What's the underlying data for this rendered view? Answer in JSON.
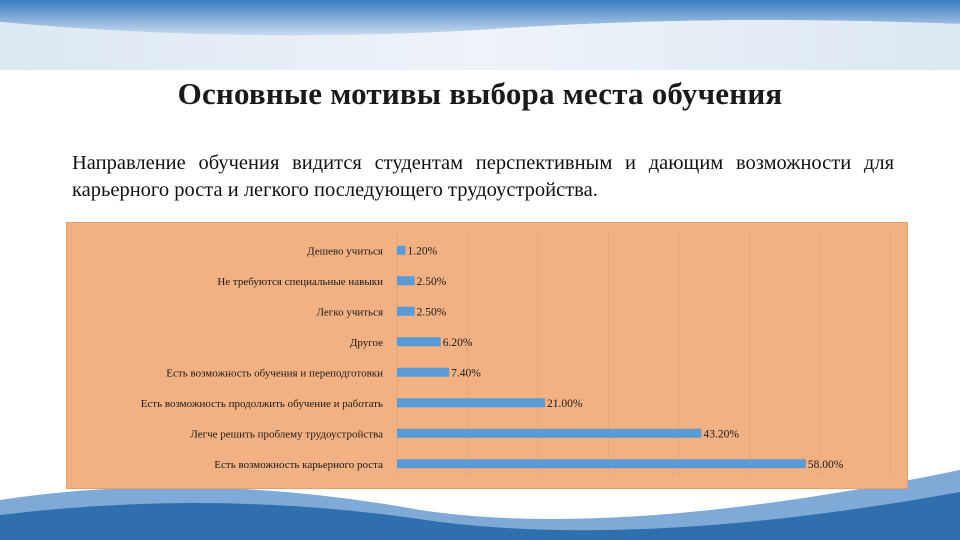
{
  "slide": {
    "title": "Основные мотивы выбора места обучения",
    "paragraph": "Направление обучения видится студентам перспективным и дающим возможности для карьерного роста и легкого последующего трудоустройства."
  },
  "colors": {
    "chart_background": "#f2b183",
    "bar": "#5b9bd5",
    "gridline": "#e3a77e",
    "banner": "#e3edf6",
    "accent_wave": "#2f6fae"
  },
  "chart_data": {
    "type": "bar",
    "orientation": "horizontal",
    "categories": [
      "Дешево учиться",
      "Не требуются специальные навыки",
      "Легко учиться",
      "Другое",
      "Есть возможность обучения и переподготовки",
      "Есть возможность продолжить обучение и работать",
      "Легче решить проблему трудоустройства",
      "Есть возможность карьерного роста"
    ],
    "values": [
      1.2,
      2.5,
      2.5,
      6.2,
      7.4,
      21.0,
      43.2,
      58.0
    ],
    "value_labels": [
      "1.20%",
      "2.50%",
      "2.50%",
      "6.20%",
      "7.40%",
      "21.00%",
      "43.20%",
      "58.00%"
    ],
    "xlim": [
      0,
      70
    ],
    "grid": true,
    "legend": "none"
  }
}
